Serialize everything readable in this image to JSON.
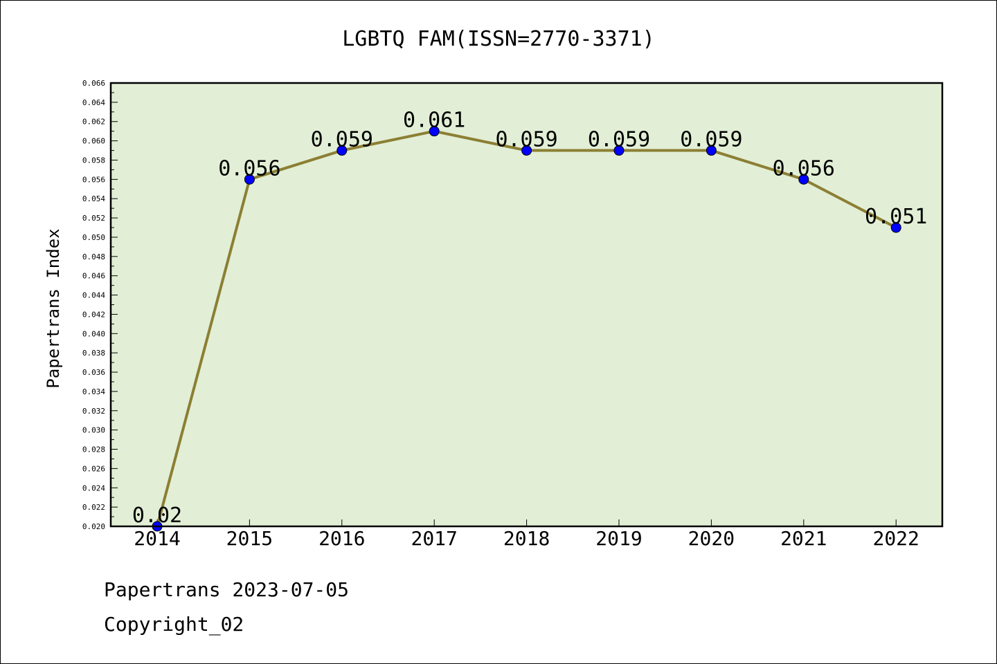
{
  "chart_data": {
    "type": "line",
    "title": "LGBTQ FAM(ISSN=2770-3371)",
    "xlabel": "",
    "ylabel": "Papertrans Index",
    "categories": [
      "2014",
      "2015",
      "2016",
      "2017",
      "2018",
      "2019",
      "2020",
      "2021",
      "2022"
    ],
    "values": [
      0.02,
      0.056,
      0.059,
      0.061,
      0.059,
      0.059,
      0.059,
      0.056,
      0.051
    ],
    "data_labels": [
      "0.02",
      "0.056",
      "0.059",
      "0.061",
      "0.059",
      "0.059",
      "0.059",
      "0.056",
      "0.051"
    ],
    "ylim": [
      0.02,
      0.066
    ],
    "yticks": [
      "0.020",
      "0.022",
      "0.024",
      "0.026",
      "0.028",
      "0.030",
      "0.032",
      "0.034",
      "0.036",
      "0.038",
      "0.040",
      "0.042",
      "0.044",
      "0.046",
      "0.048",
      "0.050",
      "0.052",
      "0.054",
      "0.056",
      "0.058",
      "0.060",
      "0.062",
      "0.064",
      "0.066"
    ],
    "grid": false,
    "legend": "none",
    "colors": {
      "plot_background": "#e2efd6",
      "line": "#8c7f34",
      "marker": "#0000ff"
    }
  },
  "footer": {
    "source": "Papertrans 2023-07-05",
    "copyright": "Copyright_02"
  }
}
